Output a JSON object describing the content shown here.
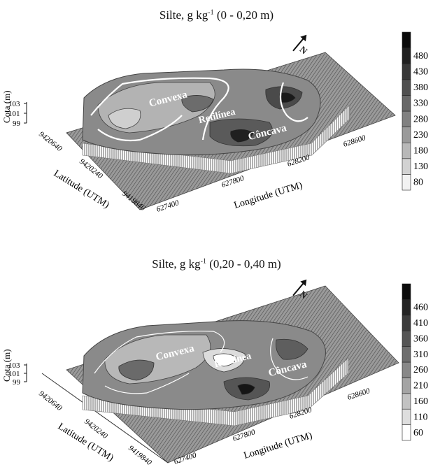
{
  "chart_data": [
    {
      "type": "heatmap",
      "title": "Silte, g kg-1 (0 - 0,20 m)",
      "title_main": "Silte, g kg",
      "title_sup": "-1",
      "title_tail": " (0 - 0,20 m)",
      "xlabel": "Longitude (UTM)",
      "ylabel": "Latitude (UTM)",
      "zlabel": "Cota (m)",
      "x_ticks": [
        "627400",
        "627800",
        "628200",
        "628600"
      ],
      "y_ticks": [
        "9419840",
        "9420240",
        "9420640"
      ],
      "z_ticks": [
        "99",
        "101",
        "103"
      ],
      "colorbar_levels": [
        "80",
        "130",
        "180",
        "230",
        "280",
        "330",
        "380",
        "430",
        "480"
      ],
      "colorbar_colors": [
        "#f2f2f2",
        "#d2d2d2",
        "#b8b8b8",
        "#9a9a9a",
        "#808080",
        "#686868",
        "#505050",
        "#383838",
        "#202020",
        "#0a0a0a"
      ],
      "regions": [
        "Convexa",
        "Retilínea",
        "Côncava"
      ],
      "north": "N"
    },
    {
      "type": "heatmap",
      "title": "Silte, g kg-1 (0,20 - 0,40 m)",
      "title_main": "Silte, g kg",
      "title_sup": "-1",
      "title_tail": " (0,20 - 0,40 m)",
      "xlabel": "Longitude (UTM)",
      "ylabel": "Latitude (UTM)",
      "zlabel": "Cota (m)",
      "x_ticks": [
        "627400",
        "627800",
        "628200",
        "628600"
      ],
      "y_ticks": [
        "9419840",
        "9420240",
        "9420640"
      ],
      "z_ticks": [
        "99",
        "101",
        "103"
      ],
      "colorbar_levels": [
        "60",
        "110",
        "160",
        "210",
        "260",
        "310",
        "360",
        "410",
        "460"
      ],
      "colorbar_colors": [
        "#ffffff",
        "#dedede",
        "#c2c2c2",
        "#a4a4a4",
        "#888888",
        "#6e6e6e",
        "#555555",
        "#3c3c3c",
        "#242424",
        "#0c0c0c"
      ],
      "regions": [
        "Convexa",
        "Retilínea",
        "Côncava"
      ],
      "north": "N"
    }
  ]
}
